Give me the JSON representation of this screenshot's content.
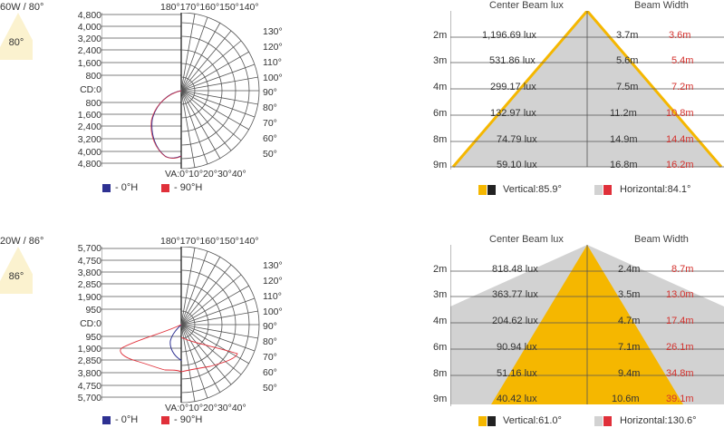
{
  "panels": [
    {
      "title": "60W / 80°",
      "badge_angle": "80°",
      "polar_ticks": [
        "4,800",
        "4,000",
        "3,200",
        "2,400",
        "1,600",
        "800",
        "CD:0",
        "800",
        "1,600",
        "2,400",
        "3,200",
        "4,000",
        "4,800"
      ],
      "top_angles": "180°170°160°150°140°",
      "side_angles": [
        "130°",
        "120°",
        "110°",
        "100°",
        "90°",
        "80°",
        "70°",
        "60°",
        "50°"
      ],
      "bottom_angles": "VA:0°10°20°30°40°",
      "legend": [
        {
          "label": "- 0°H",
          "color": "#2e3192"
        },
        {
          "label": "- 90°H",
          "color": "#e0303a"
        }
      ],
      "beam": {
        "header_lux": "Center Beam lux",
        "header_width": "Beam Width",
        "rows": [
          {
            "dist": "2m",
            "lux": "1,196.69 lux",
            "w1": "3.7m",
            "w2": "3.6m"
          },
          {
            "dist": "3m",
            "lux": "531.86 lux",
            "w1": "5.6m",
            "w2": "5.4m"
          },
          {
            "dist": "4m",
            "lux": "299.17 lux",
            "w1": "7.5m",
            "w2": "7.2m"
          },
          {
            "dist": "6m",
            "lux": "132.97 lux",
            "w1": "11.2m",
            "w2": "10.8m"
          },
          {
            "dist": "8m",
            "lux": "74.79 lux",
            "w1": "14.9m",
            "w2": "14.4m"
          },
          {
            "dist": "9m",
            "lux": "59.10 lux",
            "w1": "16.8m",
            "w2": "16.2m"
          }
        ],
        "vertical_label": "Vertical:85.9°",
        "horizontal_label": "Horizontal:84.1°",
        "vertical_angle": 85.9,
        "horizontal_angle": 84.1
      }
    },
    {
      "title": "20W / 86°",
      "badge_angle": "86°",
      "polar_ticks": [
        "5,700",
        "4,750",
        "3,800",
        "2,850",
        "1,900",
        "950",
        "CD:0",
        "950",
        "1,900",
        "2,850",
        "3,800",
        "4,750",
        "5,700"
      ],
      "top_angles": "180°170°160°150°140°",
      "side_angles": [
        "130°",
        "120°",
        "110°",
        "100°",
        "90°",
        "80°",
        "70°",
        "60°",
        "50°"
      ],
      "bottom_angles": "VA:0°10°20°30°40°",
      "legend": [
        {
          "label": "- 0°H",
          "color": "#2e3192"
        },
        {
          "label": "- 90°H",
          "color": "#e0303a"
        }
      ],
      "beam": {
        "header_lux": "Center Beam lux",
        "header_width": "Beam Width",
        "rows": [
          {
            "dist": "2m",
            "lux": "818.48 lux",
            "w1": "2.4m",
            "w2": "8.7m"
          },
          {
            "dist": "3m",
            "lux": "363.77 lux",
            "w1": "3.5m",
            "w2": "13.0m"
          },
          {
            "dist": "4m",
            "lux": "204.62 lux",
            "w1": "4.7m",
            "w2": "17.4m"
          },
          {
            "dist": "6m",
            "lux": "90.94 lux",
            "w1": "7.1m",
            "w2": "26.1m"
          },
          {
            "dist": "8m",
            "lux": "51.16 lux",
            "w1": "9.4m",
            "w2": "34.8m"
          },
          {
            "dist": "9m",
            "lux": "40.42 lux",
            "w1": "10.6m",
            "w2": "39.1m"
          }
        ],
        "vertical_label": "Vertical:61.0°",
        "horizontal_label": "Horizontal:130.6°",
        "vertical_angle": 61.0,
        "horizontal_angle": 130.6
      }
    }
  ],
  "colors": {
    "beam_orange": "#f5b700",
    "beam_gray": "#d2d2d2",
    "badge_fill": "#fbf2cf",
    "grid_line": "#555555",
    "zero_h": "#2e3192",
    "ninety_h": "#e0303a"
  }
}
